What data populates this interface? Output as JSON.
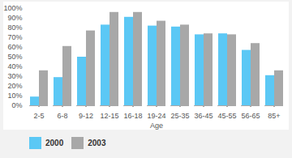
{
  "chart_data": {
    "type": "bar",
    "xlabel": "Age",
    "categories": [
      "2-5",
      "6-8",
      "9-12",
      "12-15",
      "16-18",
      "19-24",
      "25-35",
      "36-45",
      "45-55",
      "56-65",
      "85+"
    ],
    "series": [
      {
        "name": "2000",
        "color": "#5BC8F5",
        "values": [
          9,
          29,
          50,
          83,
          91,
          82,
          81,
          73,
          74,
          57,
          31
        ]
      },
      {
        "name": "2003",
        "color": "#A8A8A8",
        "values": [
          36,
          61,
          77,
          96,
          96,
          87,
          83,
          74,
          73,
          64,
          36
        ]
      }
    ],
    "ylim": [
      0,
      100
    ],
    "yticks": [
      {
        "value": 0,
        "label": "0%"
      },
      {
        "value": 10,
        "label": "10%"
      },
      {
        "value": 20,
        "label": "20%"
      },
      {
        "value": 30,
        "label": "30%"
      },
      {
        "value": 40,
        "label": "40%"
      },
      {
        "value": 50,
        "label": "50%"
      },
      {
        "value": 60,
        "label": "60%"
      },
      {
        "value": 70,
        "label": "70%"
      },
      {
        "value": 80,
        "label": "80%"
      },
      {
        "value": 90,
        "label": "90%"
      },
      {
        "value": 100,
        "label": "100%"
      }
    ],
    "grid": false,
    "legend": "lower left"
  }
}
